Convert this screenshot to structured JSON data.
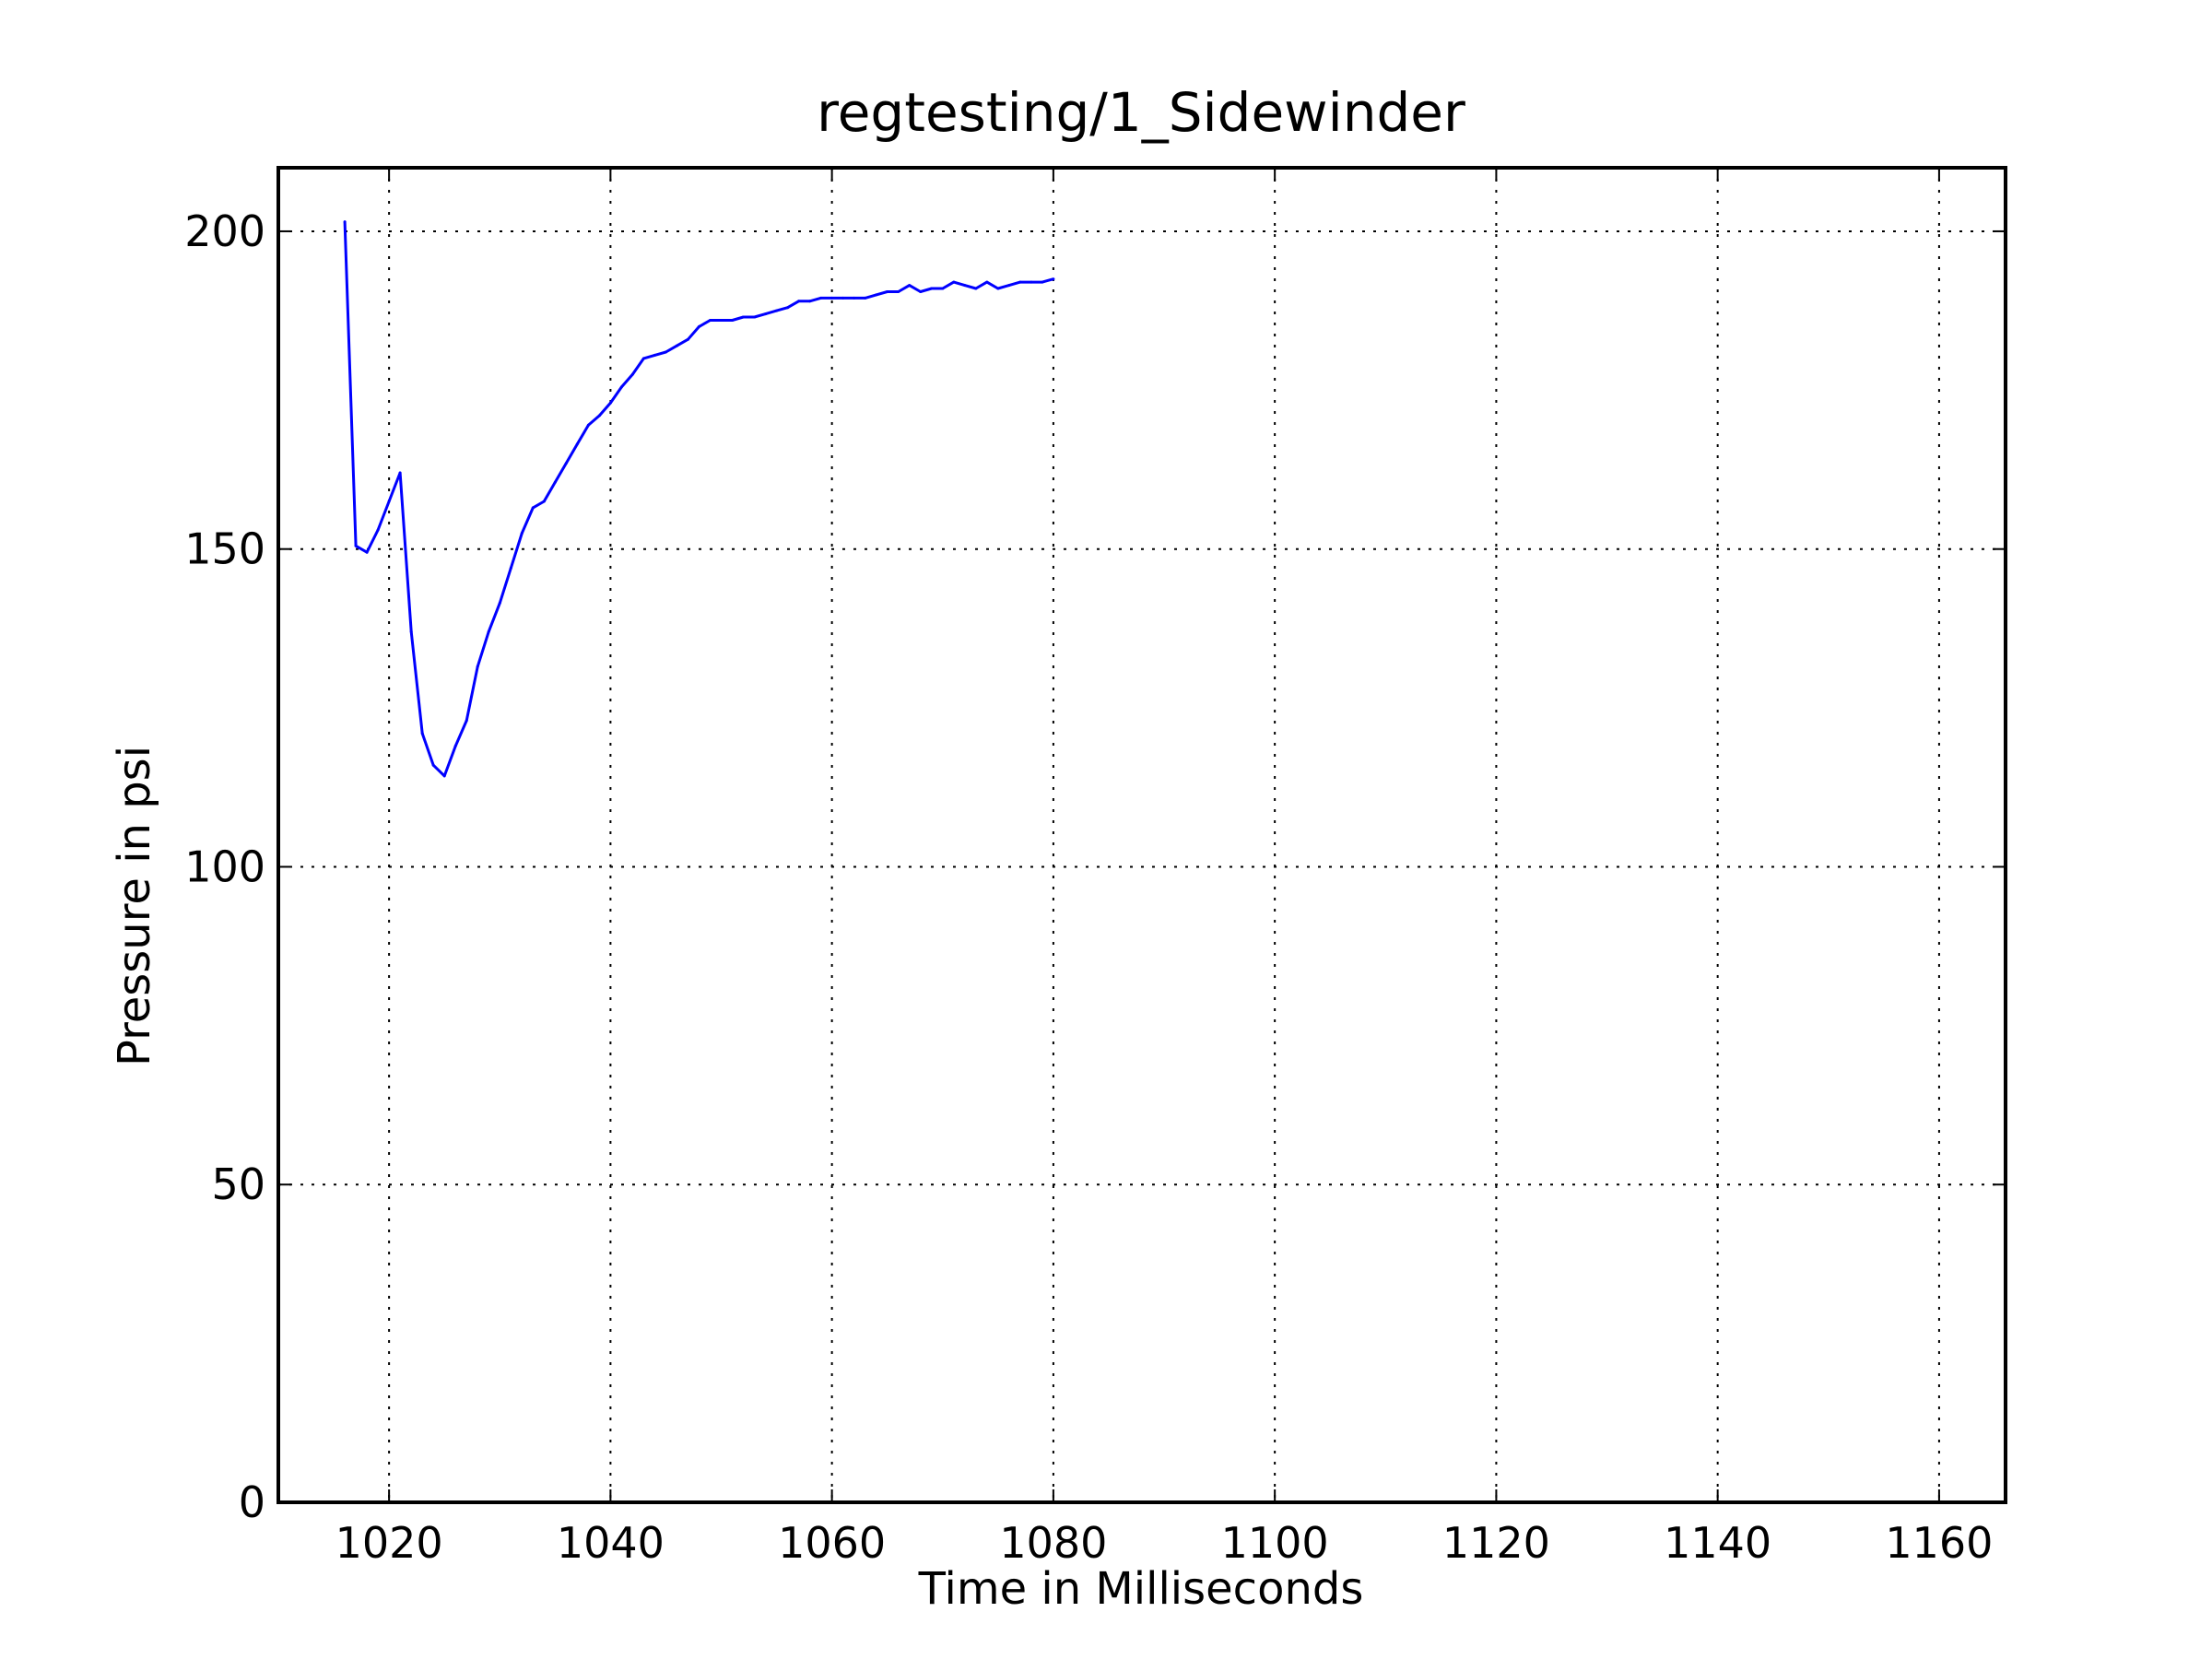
{
  "chart_data": {
    "type": "line",
    "title": "regtesting/1_Sidewinder",
    "xlabel": "Time in Milliseconds",
    "ylabel": "Pressure in psi",
    "xlim": [
      1010,
      1166
    ],
    "ylim": [
      0,
      210
    ],
    "xticks": [
      1020,
      1040,
      1060,
      1080,
      1100,
      1120,
      1140,
      1160
    ],
    "yticks": [
      0,
      50,
      100,
      150,
      200
    ],
    "grid": true,
    "line_color": "#0000ff",
    "series": [
      {
        "x": [
          1016,
          1017,
          1018,
          1019,
          1020,
          1021,
          1022,
          1023,
          1024,
          1025,
          1026,
          1027,
          1028,
          1029,
          1030,
          1031,
          1032,
          1033,
          1034,
          1035,
          1036,
          1037,
          1038,
          1039,
          1040,
          1041,
          1042,
          1043,
          1044,
          1045,
          1046,
          1047,
          1048,
          1049,
          1050,
          1051,
          1052,
          1053,
          1054,
          1055,
          1056,
          1057,
          1058,
          1059,
          1060,
          1061,
          1062,
          1063,
          1064,
          1065,
          1066,
          1067,
          1068,
          1069,
          1070,
          1071,
          1072,
          1073,
          1074,
          1075,
          1076,
          1077,
          1078,
          1079,
          1080
        ],
        "y": [
          201.5,
          150.5,
          149.5,
          153,
          157.5,
          162,
          137,
          121,
          116,
          114.3,
          119,
          123,
          131.5,
          137,
          141.5,
          147,
          152.5,
          156.5,
          157.5,
          160.5,
          163.5,
          166.5,
          169.5,
          171,
          173,
          175.5,
          177.5,
          180,
          180.5,
          181,
          182,
          183,
          185,
          186,
          186,
          186,
          186.5,
          186.5,
          187,
          187.5,
          188,
          189,
          189,
          189.5,
          189.5,
          189.5,
          189.5,
          189.5,
          190,
          190.5,
          190.5,
          191.5,
          190.5,
          191,
          191,
          192,
          191.5,
          191,
          192,
          191,
          191.5,
          192,
          192,
          192,
          192.5
        ]
      }
    ]
  }
}
